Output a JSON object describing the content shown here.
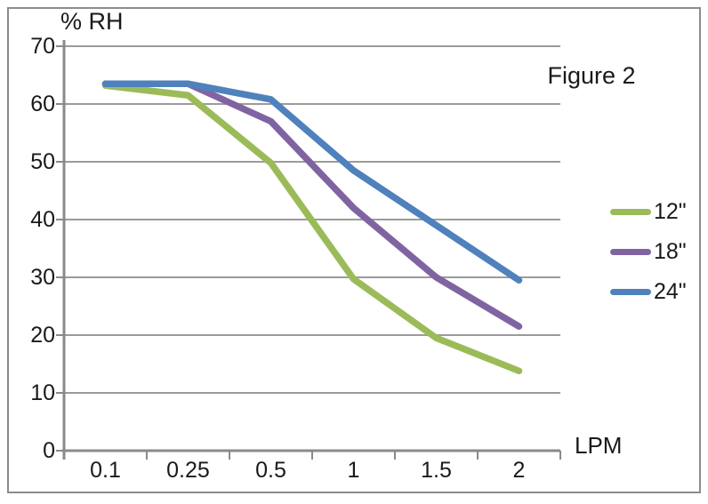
{
  "figure": {
    "border_color": "#8c8c8c",
    "background": "#ffffff"
  },
  "chart_data": {
    "type": "line",
    "title": "Figure 2",
    "ylabel": "% RH",
    "xlabel": "LPM",
    "categories": [
      "0.1",
      "0.25",
      "0.5",
      "1",
      "1.5",
      "2"
    ],
    "series": [
      {
        "name": "12\"",
        "color": "#9BBB59",
        "values": [
          63.2,
          61.5,
          49.8,
          29.7,
          19.5,
          13.8
        ]
      },
      {
        "name": "18\"",
        "color": "#8064A2",
        "values": [
          63.5,
          63.5,
          57.0,
          42.0,
          30.0,
          21.5
        ]
      },
      {
        "name": "24\"",
        "color": "#4F81BD",
        "values": [
          63.5,
          63.5,
          60.8,
          48.5,
          39.0,
          29.5
        ]
      }
    ],
    "y_ticks": [
      0,
      10,
      20,
      30,
      40,
      50,
      60,
      70
    ],
    "ylim": [
      0,
      70
    ],
    "grid": "horizontal",
    "legend_position": "right",
    "grid_color": "#9b9b9b",
    "axis_color": "#8a8a8a",
    "text_color": "#1a1a1a"
  }
}
